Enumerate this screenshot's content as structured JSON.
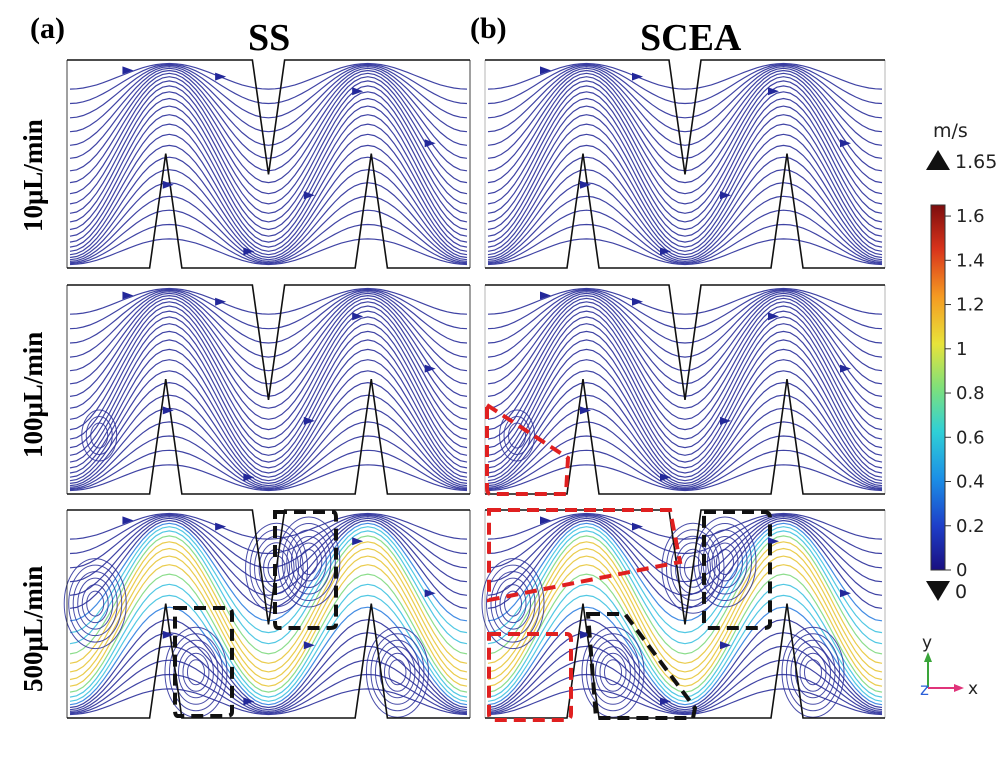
{
  "panels": [
    {
      "letter": "(a)",
      "title": "SS"
    },
    {
      "letter": "(b)",
      "title": "SCEA"
    }
  ],
  "rows": [
    {
      "label": "10μL/min",
      "intensity": 0.0
    },
    {
      "label": "100μL/min",
      "intensity": 0.15
    },
    {
      "label": "500μL/min",
      "intensity": 1.0
    }
  ],
  "colorbar": {
    "unit": "m/s",
    "max_label": "1.65",
    "min_label": "0",
    "ticks": [
      "1.6",
      "1.4",
      "1.2",
      "1",
      "0.8",
      "0.6",
      "0.4",
      "0.2",
      "0"
    ],
    "tick_values": [
      1.6,
      1.4,
      1.2,
      1.0,
      0.8,
      0.6,
      0.4,
      0.2,
      0.0
    ],
    "range": [
      0,
      1.65
    ],
    "colors": [
      "#1a0f80",
      "#1e3ec8",
      "#1b8fe6",
      "#2fd0d6",
      "#7fe07a",
      "#e8e33a",
      "#f59a22",
      "#d8331b",
      "#7d0d0d"
    ]
  },
  "axes": {
    "y": "y",
    "z": "z",
    "x": "x",
    "y_color": "#3aa53a",
    "x_color": "#e0347a",
    "z_color": "#2a5fd8"
  },
  "colors": {
    "streamline": "#2a2f9a",
    "dash_red": "#e02020",
    "dash_black": "#111111"
  }
}
